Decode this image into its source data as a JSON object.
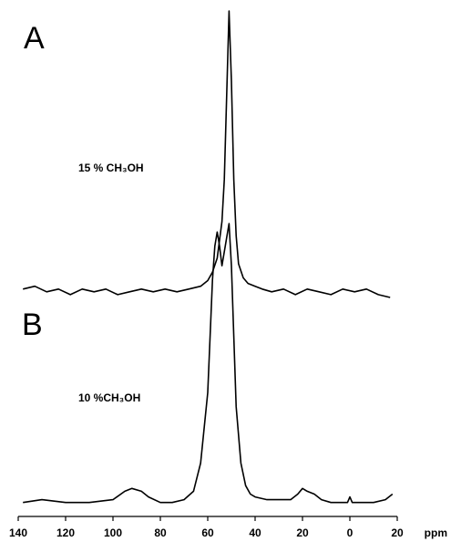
{
  "chart_data": [
    {
      "type": "line",
      "label": "A",
      "annotation": "15 % CH₃OH",
      "color": "#000000",
      "xlim": [
        140,
        -20
      ],
      "ylim": [
        -2,
        100
      ],
      "x": [
        138,
        133,
        128,
        123,
        118,
        113,
        108,
        103,
        98,
        93,
        88,
        83,
        78,
        73,
        68,
        63,
        60,
        58,
        56,
        54,
        53,
        52,
        51,
        50,
        49,
        48,
        47,
        45,
        43,
        40,
        37,
        33,
        28,
        23,
        18,
        13,
        8,
        3,
        -2,
        -7,
        -12,
        -17
      ],
      "values": [
        1,
        2,
        0,
        1,
        -1,
        1,
        0,
        1,
        -1,
        0,
        1,
        0,
        1,
        0,
        1,
        2,
        4,
        7,
        12,
        25,
        40,
        70,
        100,
        75,
        40,
        20,
        10,
        5,
        3,
        2,
        1,
        0,
        1,
        -1,
        1,
        0,
        -1,
        1,
        0,
        1,
        -1,
        -2
      ]
    },
    {
      "type": "line",
      "label": "B",
      "annotation": "10 %CH₃OH",
      "color": "#000000",
      "xlim": [
        140,
        -20
      ],
      "ylim": [
        -2,
        100
      ],
      "x": [
        138,
        130,
        120,
        110,
        100,
        95,
        92,
        88,
        85,
        80,
        75,
        70,
        66,
        63,
        60,
        58,
        57,
        56,
        55,
        54,
        53,
        52,
        51,
        50,
        49,
        48,
        46,
        44,
        42,
        40,
        35,
        30,
        25,
        22,
        20,
        18,
        15,
        12,
        8,
        4,
        1,
        0,
        -1,
        -5,
        -10,
        -15,
        -18
      ],
      "values": [
        1,
        2,
        1,
        1,
        2,
        5,
        6,
        5,
        3,
        1,
        1,
        2,
        5,
        15,
        40,
        80,
        92,
        97,
        92,
        85,
        90,
        95,
        100,
        85,
        60,
        35,
        15,
        7,
        4,
        3,
        2,
        2,
        2,
        4,
        6,
        5,
        4,
        2,
        1,
        1,
        1,
        3,
        1,
        1,
        1,
        2,
        4
      ],
      "xticks": [
        140,
        120,
        100,
        80,
        60,
        40,
        20,
        0,
        {
          "value": -20,
          "label": "20"
        }
      ],
      "xlabel": "ppm"
    }
  ]
}
